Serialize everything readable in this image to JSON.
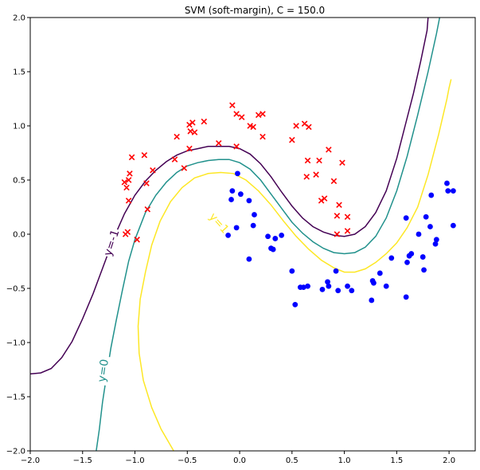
{
  "chart_data": {
    "type": "scatter",
    "title": "SVM (soft-margin), C = 150.0",
    "xlabel": "",
    "ylabel": "",
    "xlim": [
      -2.0,
      2.25
    ],
    "ylim": [
      -2.0,
      2.0
    ],
    "x_ticks": [
      -2.0,
      -1.5,
      -1.0,
      -0.5,
      0.0,
      0.5,
      1.0,
      1.5,
      2.0
    ],
    "x_tick_labels": [
      "−2.0",
      "−1.5",
      "−1.0",
      "−0.5",
      "0.0",
      "0.5",
      "1.0",
      "1.5",
      "2.0"
    ],
    "y_ticks": [
      -2.0,
      -1.5,
      -1.0,
      -0.5,
      0.0,
      0.5,
      1.0,
      1.5,
      2.0
    ],
    "y_tick_labels": [
      "−2.0",
      "−1.5",
      "−1.0",
      "−0.5",
      "0.0",
      "0.5",
      "1.0",
      "1.5",
      "2.0"
    ],
    "grid": false,
    "series": [
      {
        "marker": "x",
        "color": "#ff0000",
        "points": [
          [
            -1.1,
            0.48
          ],
          [
            -1.08,
            0.43
          ],
          [
            -1.06,
            0.5
          ],
          [
            -1.05,
            0.56
          ],
          [
            -1.03,
            0.71
          ],
          [
            -1.06,
            0.31
          ],
          [
            -1.09,
            0.0
          ],
          [
            -1.07,
            0.02
          ],
          [
            -0.98,
            -0.05
          ],
          [
            -0.91,
            0.73
          ],
          [
            -0.89,
            0.47
          ],
          [
            -0.83,
            0.59
          ],
          [
            -0.88,
            0.23
          ],
          [
            -0.6,
            0.9
          ],
          [
            -0.62,
            0.69
          ],
          [
            -0.53,
            0.61
          ],
          [
            -0.48,
            1.01
          ],
          [
            -0.45,
            1.03
          ],
          [
            -0.47,
            0.95
          ],
          [
            -0.43,
            0.94
          ],
          [
            -0.48,
            0.79
          ],
          [
            -0.34,
            1.04
          ],
          [
            -0.2,
            0.84
          ],
          [
            -0.07,
            1.19
          ],
          [
            -0.03,
            1.11
          ],
          [
            -0.03,
            0.81
          ],
          [
            0.02,
            1.08
          ],
          [
            0.1,
            1.0
          ],
          [
            0.13,
            0.99
          ],
          [
            0.18,
            1.1
          ],
          [
            0.22,
            1.11
          ],
          [
            0.22,
            0.9
          ],
          [
            0.5,
            0.87
          ],
          [
            0.54,
            1.0
          ],
          [
            0.62,
            1.02
          ],
          [
            0.66,
            0.99
          ],
          [
            0.65,
            0.68
          ],
          [
            0.64,
            0.53
          ],
          [
            0.73,
            0.55
          ],
          [
            0.76,
            0.68
          ],
          [
            0.78,
            0.31
          ],
          [
            0.81,
            0.33
          ],
          [
            0.85,
            0.78
          ],
          [
            0.9,
            0.49
          ],
          [
            0.93,
            0.17
          ],
          [
            0.95,
            0.27
          ],
          [
            0.98,
            0.66
          ],
          [
            1.03,
            0.16
          ],
          [
            1.03,
            0.03
          ],
          [
            0.93,
            0.0
          ]
        ]
      },
      {
        "marker": "o",
        "color": "#0000ff",
        "points": [
          [
            -0.07,
            0.4
          ],
          [
            -0.08,
            0.32
          ],
          [
            -0.11,
            -0.01
          ],
          [
            -0.03,
            0.06
          ],
          [
            -0.02,
            0.56
          ],
          [
            0.01,
            0.37
          ],
          [
            0.09,
            0.31
          ],
          [
            0.14,
            0.18
          ],
          [
            0.13,
            0.08
          ],
          [
            0.09,
            -0.23
          ],
          [
            0.27,
            -0.02
          ],
          [
            0.3,
            -0.13
          ],
          [
            0.32,
            -0.14
          ],
          [
            0.34,
            -0.04
          ],
          [
            0.4,
            -0.01
          ],
          [
            0.5,
            -0.34
          ],
          [
            0.53,
            -0.65
          ],
          [
            0.58,
            -0.49
          ],
          [
            0.61,
            -0.49
          ],
          [
            0.65,
            -0.48
          ],
          [
            0.79,
            -0.51
          ],
          [
            0.84,
            -0.44
          ],
          [
            0.85,
            -0.48
          ],
          [
            0.92,
            -0.34
          ],
          [
            0.94,
            -0.52
          ],
          [
            1.03,
            -0.48
          ],
          [
            1.07,
            -0.52
          ],
          [
            1.26,
            -0.61
          ],
          [
            1.27,
            -0.43
          ],
          [
            1.28,
            -0.45
          ],
          [
            1.34,
            -0.36
          ],
          [
            1.4,
            -0.48
          ],
          [
            1.45,
            -0.22
          ],
          [
            1.59,
            -0.58
          ],
          [
            1.6,
            -0.26
          ],
          [
            1.59,
            0.15
          ],
          [
            1.62,
            -0.2
          ],
          [
            1.64,
            -0.18
          ],
          [
            1.71,
            0.0
          ],
          [
            1.75,
            -0.21
          ],
          [
            1.76,
            -0.33
          ],
          [
            1.78,
            0.16
          ],
          [
            1.82,
            0.07
          ],
          [
            1.83,
            0.36
          ],
          [
            1.87,
            -0.09
          ],
          [
            1.88,
            -0.05
          ],
          [
            1.98,
            0.47
          ],
          [
            1.99,
            0.4
          ],
          [
            2.04,
            0.4
          ],
          [
            2.04,
            0.08
          ]
        ]
      }
    ],
    "contours": [
      {
        "level": -1,
        "label": "y=-1",
        "color": "#440154",
        "label_at": [
          -1.22,
          -0.08
        ],
        "label_rotation": -72,
        "points": [
          [
            -2.0,
            -1.29
          ],
          [
            -1.9,
            -1.28
          ],
          [
            -1.8,
            -1.24
          ],
          [
            -1.7,
            -1.14
          ],
          [
            -1.6,
            -0.99
          ],
          [
            -1.5,
            -0.78
          ],
          [
            -1.4,
            -0.55
          ],
          [
            -1.3,
            -0.29
          ],
          [
            -1.2,
            -0.03
          ],
          [
            -1.1,
            0.19
          ],
          [
            -1.0,
            0.36
          ],
          [
            -0.9,
            0.49
          ],
          [
            -0.8,
            0.59
          ],
          [
            -0.7,
            0.67
          ],
          [
            -0.6,
            0.73
          ],
          [
            -0.5,
            0.77
          ],
          [
            -0.4,
            0.79
          ],
          [
            -0.3,
            0.81
          ],
          [
            -0.2,
            0.81
          ],
          [
            -0.1,
            0.81
          ],
          [
            0.0,
            0.79
          ],
          [
            0.1,
            0.74
          ],
          [
            0.2,
            0.65
          ],
          [
            0.3,
            0.53
          ],
          [
            0.4,
            0.39
          ],
          [
            0.5,
            0.26
          ],
          [
            0.6,
            0.15
          ],
          [
            0.7,
            0.07
          ],
          [
            0.8,
            0.02
          ],
          [
            0.9,
            -0.01
          ],
          [
            1.0,
            -0.02
          ],
          [
            1.1,
            0.0
          ],
          [
            1.2,
            0.07
          ],
          [
            1.3,
            0.2
          ],
          [
            1.4,
            0.4
          ],
          [
            1.5,
            0.7
          ],
          [
            1.58,
            1.0
          ],
          [
            1.66,
            1.3
          ],
          [
            1.73,
            1.6
          ],
          [
            1.79,
            1.88
          ],
          [
            1.8,
            2.0
          ]
        ]
      },
      {
        "level": 0,
        "label": "y=0",
        "color": "#21918c",
        "label_at": [
          -1.3,
          -1.26
        ],
        "label_rotation": -82,
        "points": [
          [
            -1.37,
            -2.0
          ],
          [
            -1.34,
            -1.8
          ],
          [
            -1.31,
            -1.55
          ],
          [
            -1.27,
            -1.3
          ],
          [
            -1.23,
            -1.05
          ],
          [
            -1.18,
            -0.8
          ],
          [
            -1.12,
            -0.52
          ],
          [
            -1.06,
            -0.25
          ],
          [
            -1.0,
            -0.05
          ],
          [
            -0.9,
            0.2
          ],
          [
            -0.8,
            0.36
          ],
          [
            -0.7,
            0.48
          ],
          [
            -0.6,
            0.57
          ],
          [
            -0.5,
            0.63
          ],
          [
            -0.4,
            0.66
          ],
          [
            -0.3,
            0.68
          ],
          [
            -0.2,
            0.69
          ],
          [
            -0.1,
            0.69
          ],
          [
            0.0,
            0.66
          ],
          [
            0.1,
            0.6
          ],
          [
            0.2,
            0.5
          ],
          [
            0.3,
            0.37
          ],
          [
            0.4,
            0.24
          ],
          [
            0.5,
            0.11
          ],
          [
            0.6,
            0.01
          ],
          [
            0.7,
            -0.07
          ],
          [
            0.8,
            -0.13
          ],
          [
            0.9,
            -0.17
          ],
          [
            1.0,
            -0.18
          ],
          [
            1.1,
            -0.17
          ],
          [
            1.2,
            -0.12
          ],
          [
            1.3,
            -0.02
          ],
          [
            1.4,
            0.15
          ],
          [
            1.5,
            0.4
          ],
          [
            1.6,
            0.72
          ],
          [
            1.7,
            1.1
          ],
          [
            1.8,
            1.5
          ],
          [
            1.88,
            1.85
          ],
          [
            1.91,
            2.0
          ]
        ]
      },
      {
        "level": 1,
        "label": "y=1",
        "color": "#fde725",
        "label_at": [
          -0.2,
          0.1
        ],
        "label_rotation": 48,
        "points": [
          [
            -0.63,
            -2.0
          ],
          [
            -0.75,
            -1.8
          ],
          [
            -0.84,
            -1.6
          ],
          [
            -0.92,
            -1.35
          ],
          [
            -0.96,
            -1.1
          ],
          [
            -0.97,
            -0.85
          ],
          [
            -0.95,
            -0.6
          ],
          [
            -0.9,
            -0.35
          ],
          [
            -0.84,
            -0.1
          ],
          [
            -0.76,
            0.12
          ],
          [
            -0.66,
            0.3
          ],
          [
            -0.55,
            0.43
          ],
          [
            -0.43,
            0.52
          ],
          [
            -0.3,
            0.56
          ],
          [
            -0.18,
            0.57
          ],
          [
            -0.06,
            0.56
          ],
          [
            0.06,
            0.5
          ],
          [
            0.18,
            0.4
          ],
          [
            0.3,
            0.27
          ],
          [
            0.42,
            0.12
          ],
          [
            0.54,
            -0.02
          ],
          [
            0.66,
            -0.14
          ],
          [
            0.78,
            -0.24
          ],
          [
            0.9,
            -0.31
          ],
          [
            1.0,
            -0.35
          ],
          [
            1.1,
            -0.35
          ],
          [
            1.2,
            -0.32
          ],
          [
            1.3,
            -0.26
          ],
          [
            1.4,
            -0.18
          ],
          [
            1.5,
            -0.08
          ],
          [
            1.6,
            0.06
          ],
          [
            1.7,
            0.25
          ],
          [
            1.8,
            0.55
          ],
          [
            1.9,
            0.92
          ],
          [
            1.98,
            1.25
          ],
          [
            2.0,
            1.35
          ],
          [
            2.02,
            1.43
          ]
        ]
      }
    ]
  }
}
